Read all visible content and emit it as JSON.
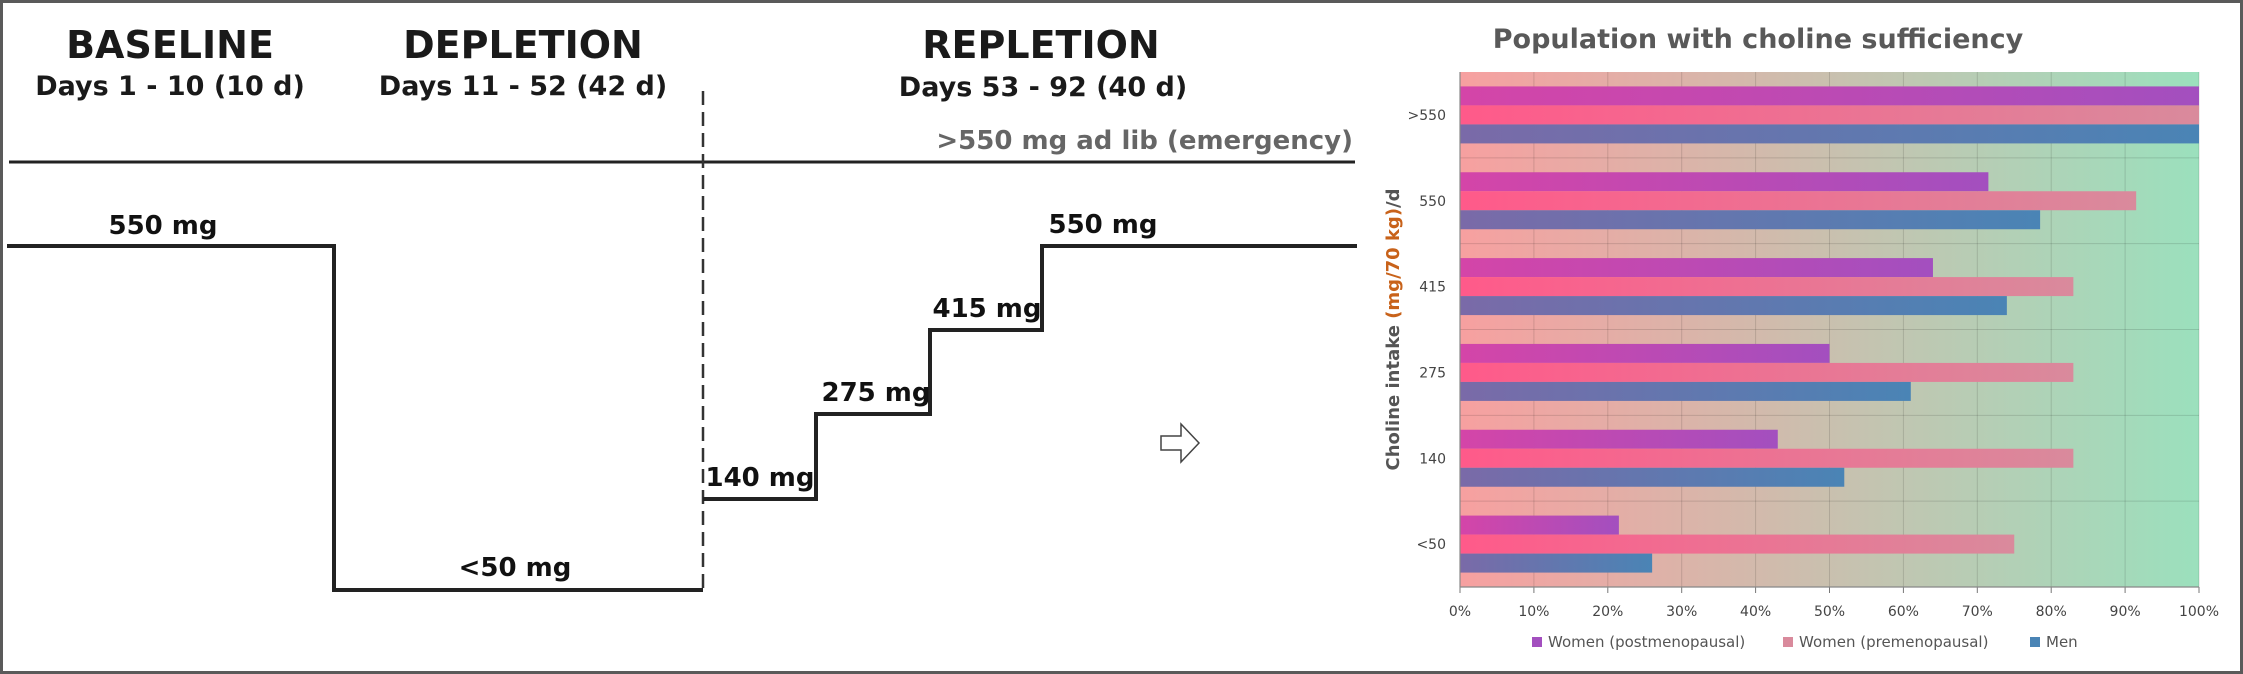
{
  "protocol": {
    "phases": [
      {
        "name": "BASELINE",
        "days": "Days 1 - 10 (10 d)"
      },
      {
        "name": "DEPLETION",
        "days": "Days 11 - 52 (42 d)"
      },
      {
        "name": "REPLETION",
        "days": "Days 53 - 92 (40 d)"
      }
    ],
    "emergency_label": ">550 mg ad lib (emergency)",
    "dose_labels": {
      "baseline": "550 mg",
      "depletion": "<50 mg",
      "step1": "140 mg",
      "step2": "275 mg",
      "step3": "415 mg",
      "step4": "550 mg"
    }
  },
  "colors": {
    "women_post": "#a34fbf",
    "women_pre": "#d98a9c",
    "men": "#4a84b5",
    "axis_accent": "#c8621a",
    "bg_left": "#f7a0a0",
    "bg_right": "#9be0bd"
  },
  "chart_data": {
    "type": "bar",
    "orientation": "horizontal",
    "title": "Population with choline sufficiency",
    "ylabel_prefix": "Choline intake ",
    "ylabel_unit": "(mg/70 kg)",
    "ylabel_suffix": "/d",
    "xlim": [
      0,
      100
    ],
    "xticks": [
      "0%",
      "10%",
      "20%",
      "30%",
      "40%",
      "50%",
      "60%",
      "70%",
      "80%",
      "90%",
      "100%"
    ],
    "categories": [
      "<50",
      "140",
      "275",
      "415",
      "550",
      ">550"
    ],
    "series": [
      {
        "name": "Women (postmenopausal)",
        "values": [
          21.5,
          43,
          50,
          64,
          71.5,
          100
        ]
      },
      {
        "name": "Women (premenopausal)",
        "values": [
          75,
          83,
          83,
          83,
          91.5,
          100
        ]
      },
      {
        "name": "Men",
        "values": [
          26,
          52,
          61,
          74,
          78.5,
          100
        ]
      }
    ],
    "grid": true,
    "legend": "bottom"
  }
}
